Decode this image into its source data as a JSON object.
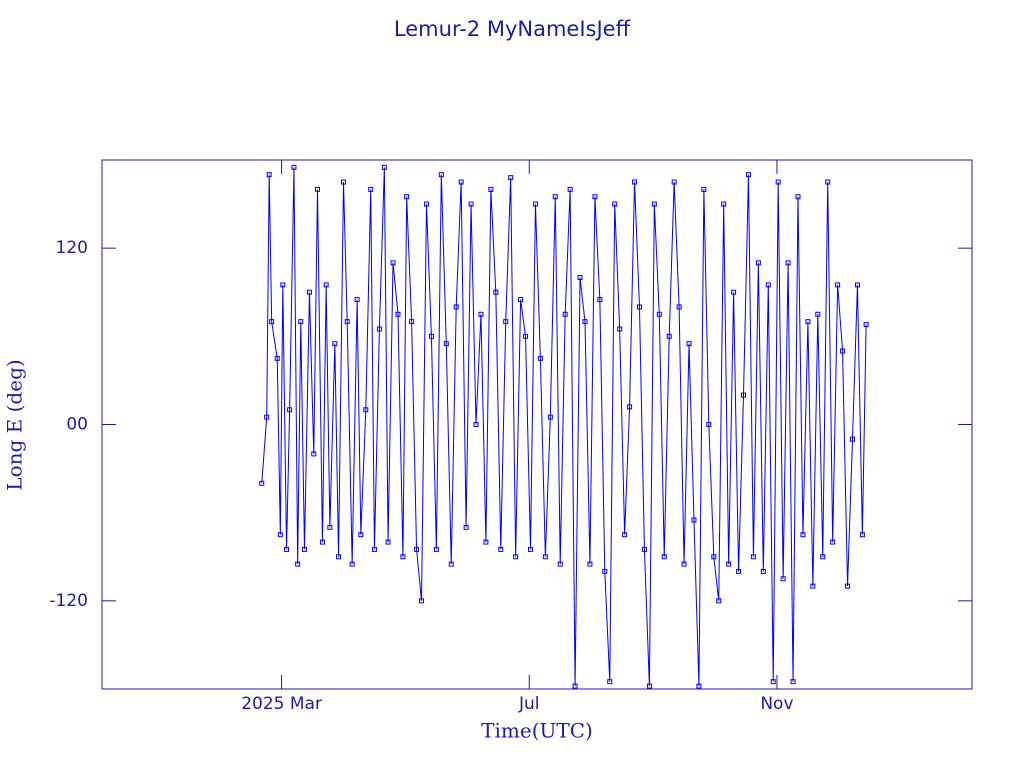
{
  "chart_data": {
    "type": "line",
    "title": "Lemur-2 MyNameIsJeff",
    "x_label": "Time(UTC)",
    "y_label": "Long E (deg)",
    "color": "#0000ff",
    "frame_color": "#1c1ca8",
    "markers": true,
    "xlim": [
      0.1,
      14.15
    ],
    "xticks": [
      {
        "value": 3,
        "label": "2025 Mar"
      },
      {
        "value": 7,
        "label": "Jul"
      },
      {
        "value": 11,
        "label": "Nov"
      }
    ],
    "ylim": [
      -180,
      180
    ],
    "yticks": [
      -120,
      {
        "value": 0,
        "label": "00"
      },
      120
    ],
    "x": [
      2.68,
      2.76,
      2.8,
      2.84,
      2.93,
      2.98,
      3.02,
      3.08,
      3.13,
      3.2,
      3.26,
      3.31,
      3.37,
      3.45,
      3.52,
      3.58,
      3.66,
      3.72,
      3.78,
      3.86,
      3.92,
      4.0,
      4.06,
      4.14,
      4.22,
      4.28,
      4.36,
      4.44,
      4.5,
      4.58,
      4.66,
      4.72,
      4.8,
      4.88,
      4.96,
      5.02,
      5.1,
      5.18,
      5.26,
      5.34,
      5.42,
      5.5,
      5.58,
      5.66,
      5.74,
      5.82,
      5.9,
      5.98,
      6.06,
      6.14,
      6.22,
      6.3,
      6.38,
      6.46,
      6.54,
      6.62,
      6.7,
      6.78,
      6.86,
      6.94,
      7.02,
      7.1,
      7.18,
      7.26,
      7.34,
      7.42,
      7.5,
      7.58,
      7.66,
      7.74,
      7.82,
      7.9,
      7.98,
      8.06,
      8.14,
      8.22,
      8.3,
      8.38,
      8.46,
      8.54,
      8.62,
      8.7,
      8.78,
      8.86,
      8.94,
      9.02,
      9.1,
      9.18,
      9.26,
      9.34,
      9.42,
      9.5,
      9.58,
      9.66,
      9.74,
      9.82,
      9.9,
      9.98,
      10.06,
      10.14,
      10.22,
      10.3,
      10.38,
      10.46,
      10.54,
      10.62,
      10.7,
      10.78,
      10.86,
      10.94,
      11.02,
      11.1,
      11.18,
      11.26,
      11.34,
      11.42,
      11.5,
      11.58,
      11.66,
      11.74,
      11.82,
      11.9,
      11.98,
      12.06,
      12.14,
      12.22,
      12.3,
      12.38,
      12.44
    ],
    "values": [
      -40,
      5,
      170,
      70,
      45,
      -75,
      95,
      -85,
      10,
      175,
      -95,
      70,
      -85,
      90,
      -20,
      160,
      -80,
      95,
      -70,
      55,
      -90,
      165,
      70,
      -95,
      85,
      -75,
      10,
      160,
      -85,
      65,
      175,
      -80,
      110,
      75,
      -90,
      155,
      70,
      -85,
      -120,
      150,
      60,
      -85,
      170,
      55,
      -95,
      80,
      165,
      -70,
      150,
      0,
      75,
      -80,
      160,
      90,
      -85,
      70,
      168,
      -90,
      85,
      60,
      -85,
      150,
      45,
      -90,
      5,
      155,
      -95,
      75,
      160,
      -178,
      100,
      70,
      -95,
      155,
      85,
      -100,
      -175,
      150,
      65,
      -75,
      12,
      165,
      80,
      -85,
      -178,
      150,
      75,
      -90,
      60,
      165,
      80,
      -95,
      55,
      -65,
      -178,
      160,
      0,
      -90,
      -120,
      150,
      -95,
      90,
      -100,
      20,
      170,
      -90,
      110,
      -100,
      95,
      -175,
      165,
      -105,
      110,
      -175,
      155,
      -75,
      70,
      -110,
      75,
      -90,
      165,
      -80,
      95,
      50,
      -110,
      -10,
      95,
      -75,
      68
    ]
  }
}
